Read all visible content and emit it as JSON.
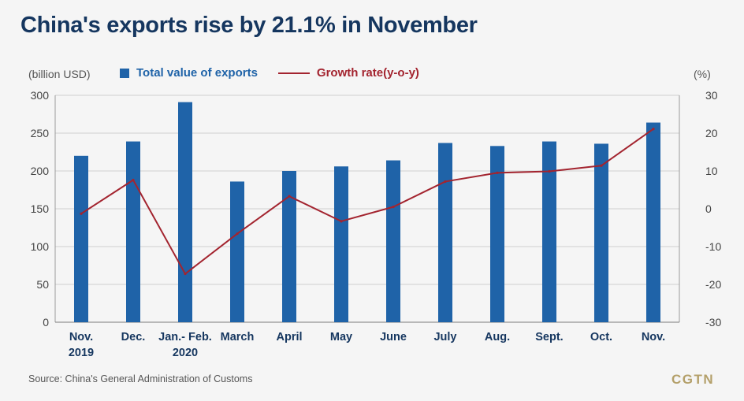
{
  "title": "China's exports rise by 21.1% in November",
  "left_unit": "(billion USD)",
  "right_unit": "(%)",
  "legend": {
    "bar_label": "Total value of exports",
    "line_label": "Growth rate(y-o-y)"
  },
  "source": "Source: China's General Administration of Customs",
  "logo": "CGTN",
  "colors": {
    "bar": "#1f63a8",
    "line": "#a3242f",
    "title": "#15365f"
  },
  "chart_data": {
    "type": "bar",
    "categories": [
      [
        "Nov.",
        "2019"
      ],
      [
        "Dec."
      ],
      [
        "Jan.- Feb.",
        "2020"
      ],
      [
        "March"
      ],
      [
        "April"
      ],
      [
        "May"
      ],
      [
        "June"
      ],
      [
        "July"
      ],
      [
        "Aug."
      ],
      [
        "Sept."
      ],
      [
        "Oct."
      ],
      [
        "Nov."
      ]
    ],
    "series": [
      {
        "name": "Total value of exports",
        "axis": "left",
        "type": "bar",
        "values": [
          220,
          239,
          291,
          186,
          200,
          206,
          214,
          237,
          233,
          239,
          236,
          264
        ]
      },
      {
        "name": "Growth rate(y-o-y)",
        "axis": "right",
        "type": "line",
        "values": [
          -1.3,
          7.6,
          -17.2,
          -6.6,
          3.3,
          -3.3,
          0.5,
          7.2,
          9.5,
          9.9,
          11.4,
          21.1
        ]
      }
    ],
    "left_axis": {
      "ylim": [
        0,
        300
      ],
      "ticks": [
        "0",
        "50",
        "100",
        "150",
        "200",
        "250",
        "300"
      ]
    },
    "right_axis": {
      "ylim": [
        -30,
        30
      ],
      "ticks": [
        "-30",
        "-20",
        "-10",
        "0",
        "10",
        "20",
        "30"
      ]
    },
    "grid": true
  }
}
